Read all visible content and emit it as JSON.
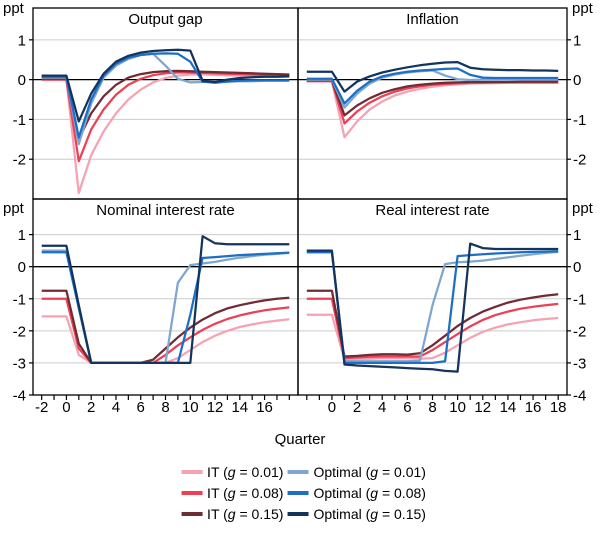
{
  "figure": {
    "unit_label": "ppt",
    "xlabel": "Quarter"
  },
  "colors": {
    "it_001": "#F5A3B2",
    "it_008": "#EC4057",
    "it_015": "#6E2C33",
    "opt_001": "#7FA6CD",
    "opt_008": "#1C6FC4",
    "opt_015": "#14335D",
    "grid": "#CCCCCC",
    "axis": "#000000"
  },
  "legend": [
    {
      "pre": "IT (",
      "g": "g",
      "post": " = 0.01)",
      "color_key": "it_001"
    },
    {
      "pre": "Optimal (",
      "g": "g",
      "post": " = 0.01)",
      "color_key": "opt_001"
    },
    {
      "pre": "IT (",
      "g": "g",
      "post": " = 0.08)",
      "color_key": "it_008"
    },
    {
      "pre": "Optimal (",
      "g": "g",
      "post": " = 0.08)",
      "color_key": "opt_008"
    },
    {
      "pre": "IT (",
      "g": "g",
      "post": " = 0.15)",
      "color_key": "it_015"
    },
    {
      "pre": "Optimal (",
      "g": "g",
      "post": " = 0.15)",
      "color_key": "opt_015"
    }
  ],
  "chart_data": [
    {
      "type": "line",
      "title": "Output gap",
      "position": "top-left",
      "ytick_side": "left",
      "xlim": [
        -2.7,
        18.7
      ],
      "ylim": [
        -3.0,
        1.8
      ],
      "yticks": [
        1,
        0,
        -1,
        -2
      ],
      "xtick_labels": [],
      "x": [
        -2,
        -1,
        0,
        1,
        2,
        3,
        4,
        5,
        6,
        7,
        8,
        9,
        10,
        11,
        12,
        13,
        14,
        15,
        16,
        17,
        18
      ],
      "series": [
        {
          "name": "IT (g = 0.01)",
          "color_key": "it_001",
          "values": [
            0.0,
            0.0,
            0.0,
            -2.85,
            -1.9,
            -1.3,
            -0.85,
            -0.5,
            -0.25,
            -0.07,
            0.04,
            0.1,
            0.13,
            0.13,
            0.12,
            0.11,
            0.1,
            0.1,
            0.09,
            0.09,
            0.08
          ]
        },
        {
          "name": "IT (g = 0.08)",
          "color_key": "it_008",
          "values": [
            0.0,
            0.0,
            0.0,
            -2.05,
            -1.25,
            -0.75,
            -0.38,
            -0.13,
            0.02,
            0.11,
            0.16,
            0.18,
            0.18,
            0.17,
            0.16,
            0.15,
            0.14,
            0.13,
            0.12,
            0.11,
            0.1
          ]
        },
        {
          "name": "IT (g = 0.15)",
          "color_key": "it_015",
          "values": [
            0.02,
            0.02,
            0.02,
            -1.5,
            -0.85,
            -0.42,
            -0.13,
            0.05,
            0.14,
            0.19,
            0.21,
            0.22,
            0.21,
            0.2,
            0.19,
            0.18,
            0.17,
            0.16,
            0.15,
            0.14,
            0.13
          ]
        },
        {
          "name": "Optimal (g = 0.01)",
          "color_key": "opt_001",
          "values": [
            0.05,
            0.05,
            0.05,
            -1.62,
            -0.6,
            0.05,
            0.35,
            0.52,
            0.62,
            0.65,
            0.35,
            0.02,
            -0.07,
            -0.06,
            -0.05,
            -0.05,
            -0.04,
            -0.04,
            -0.03,
            -0.03,
            -0.03
          ]
        },
        {
          "name": "Optimal (g = 0.08)",
          "color_key": "opt_008",
          "values": [
            0.07,
            0.07,
            0.07,
            -1.45,
            -0.5,
            0.1,
            0.4,
            0.55,
            0.62,
            0.65,
            0.66,
            0.65,
            0.45,
            -0.05,
            -0.08,
            -0.05,
            -0.03,
            -0.02,
            -0.02,
            -0.02,
            -0.02
          ]
        },
        {
          "name": "Optimal (g = 0.15)",
          "color_key": "opt_015",
          "values": [
            0.1,
            0.1,
            0.1,
            -1.05,
            -0.35,
            0.15,
            0.45,
            0.6,
            0.68,
            0.72,
            0.74,
            0.75,
            0.73,
            -0.03,
            -0.06,
            0.0,
            0.04,
            0.06,
            0.07,
            0.07,
            0.08
          ]
        }
      ]
    },
    {
      "type": "line",
      "title": "Inflation",
      "position": "top-right",
      "ytick_side": "right",
      "xlim": [
        -2.7,
        18.7
      ],
      "ylim": [
        -3.0,
        1.8
      ],
      "yticks": [
        1,
        0,
        -1,
        -2
      ],
      "xtick_labels": [],
      "x": [
        -2,
        -1,
        0,
        1,
        2,
        3,
        4,
        5,
        6,
        7,
        8,
        9,
        10,
        11,
        12,
        13,
        14,
        15,
        16,
        17,
        18
      ],
      "series": [
        {
          "name": "IT (g = 0.01)",
          "color_key": "it_001",
          "values": [
            -0.05,
            -0.05,
            -0.05,
            -1.45,
            -1.05,
            -0.75,
            -0.55,
            -0.4,
            -0.3,
            -0.23,
            -0.18,
            -0.14,
            -0.12,
            -0.1,
            -0.09,
            -0.09,
            -0.08,
            -0.08,
            -0.08,
            -0.08,
            -0.08
          ]
        },
        {
          "name": "IT (g = 0.08)",
          "color_key": "it_008",
          "values": [
            -0.03,
            -0.03,
            -0.03,
            -1.1,
            -0.8,
            -0.58,
            -0.42,
            -0.3,
            -0.22,
            -0.17,
            -0.13,
            -0.11,
            -0.09,
            -0.08,
            -0.08,
            -0.07,
            -0.07,
            -0.07,
            -0.07,
            -0.07,
            -0.07
          ]
        },
        {
          "name": "IT (g = 0.15)",
          "color_key": "it_015",
          "values": [
            -0.02,
            -0.02,
            -0.02,
            -0.9,
            -0.65,
            -0.47,
            -0.33,
            -0.24,
            -0.17,
            -0.13,
            -0.1,
            -0.08,
            -0.07,
            -0.06,
            -0.06,
            -0.06,
            -0.06,
            -0.05,
            -0.05,
            -0.05,
            -0.05
          ]
        },
        {
          "name": "Optimal (g = 0.01)",
          "color_key": "opt_001",
          "values": [
            0.0,
            0.0,
            0.0,
            -0.7,
            -0.35,
            -0.1,
            0.05,
            0.13,
            0.18,
            0.21,
            0.23,
            0.1,
            0.01,
            -0.01,
            0.0,
            0.0,
            0.0,
            0.0,
            0.0,
            0.0,
            0.0
          ]
        },
        {
          "name": "Optimal (g = 0.08)",
          "color_key": "opt_008",
          "values": [
            0.02,
            0.02,
            0.02,
            -0.6,
            -0.28,
            -0.05,
            0.08,
            0.15,
            0.2,
            0.23,
            0.25,
            0.27,
            0.28,
            0.12,
            0.05,
            0.04,
            0.04,
            0.04,
            0.04,
            0.04,
            0.04
          ]
        },
        {
          "name": "Optimal (g = 0.15)",
          "color_key": "opt_015",
          "values": [
            0.2,
            0.2,
            0.2,
            -0.3,
            -0.05,
            0.08,
            0.18,
            0.25,
            0.31,
            0.36,
            0.4,
            0.43,
            0.44,
            0.3,
            0.26,
            0.25,
            0.24,
            0.24,
            0.23,
            0.23,
            0.22
          ]
        }
      ]
    },
    {
      "type": "line",
      "title": "Nominal interest rate",
      "position": "bottom-left",
      "ytick_side": "left",
      "xlim": [
        -2.7,
        18.7
      ],
      "ylim": [
        -4.0,
        2.11
      ],
      "yticks": [
        1,
        0,
        -1,
        -2,
        -3,
        -4
      ],
      "xtick_labels": [
        -2,
        0,
        2,
        4,
        6,
        8,
        10,
        12,
        14,
        16
      ],
      "x": [
        -2,
        -1,
        0,
        1,
        2,
        3,
        4,
        5,
        6,
        7,
        8,
        9,
        10,
        11,
        12,
        13,
        14,
        15,
        16,
        17,
        18
      ],
      "series": [
        {
          "name": "IT (g = 0.01)",
          "color_key": "it_001",
          "values": [
            -1.55,
            -1.55,
            -1.55,
            -2.75,
            -3.0,
            -3.0,
            -3.0,
            -3.0,
            -3.0,
            -3.0,
            -3.0,
            -2.85,
            -2.6,
            -2.35,
            -2.15,
            -2.0,
            -1.88,
            -1.8,
            -1.73,
            -1.68,
            -1.64
          ]
        },
        {
          "name": "IT (g = 0.08)",
          "color_key": "it_008",
          "values": [
            -1.0,
            -1.0,
            -1.0,
            -2.55,
            -3.0,
            -3.0,
            -3.0,
            -3.0,
            -3.0,
            -3.0,
            -2.75,
            -2.45,
            -2.2,
            -1.97,
            -1.78,
            -1.63,
            -1.52,
            -1.43,
            -1.36,
            -1.31,
            -1.27
          ]
        },
        {
          "name": "IT (g = 0.15)",
          "color_key": "it_015",
          "values": [
            -0.75,
            -0.75,
            -0.75,
            -2.4,
            -3.0,
            -3.0,
            -3.0,
            -3.0,
            -3.0,
            -2.9,
            -2.55,
            -2.2,
            -1.9,
            -1.65,
            -1.45,
            -1.3,
            -1.2,
            -1.12,
            -1.05,
            -1.0,
            -0.97
          ]
        },
        {
          "name": "Optimal (g = 0.01)",
          "color_key": "opt_001",
          "values": [
            0.5,
            0.5,
            0.5,
            -1.25,
            -3.0,
            -3.0,
            -3.0,
            -3.0,
            -3.0,
            -3.0,
            -3.0,
            -0.5,
            0.05,
            0.1,
            0.15,
            0.22,
            0.28,
            0.33,
            0.37,
            0.4,
            0.43
          ]
        },
        {
          "name": "Optimal (g = 0.08)",
          "color_key": "opt_008",
          "values": [
            0.45,
            0.45,
            0.45,
            -1.3,
            -3.0,
            -3.0,
            -3.0,
            -3.0,
            -3.0,
            -3.0,
            -3.0,
            -3.0,
            -1.5,
            0.27,
            0.3,
            0.33,
            0.36,
            0.38,
            0.4,
            0.42,
            0.44
          ]
        },
        {
          "name": "Optimal (g = 0.15)",
          "color_key": "opt_015",
          "values": [
            0.65,
            0.65,
            0.65,
            -1.2,
            -3.0,
            -3.0,
            -3.0,
            -3.0,
            -3.0,
            -3.0,
            -3.0,
            -3.0,
            -3.0,
            0.95,
            0.73,
            0.7,
            0.7,
            0.7,
            0.7,
            0.7,
            0.7
          ]
        }
      ]
    },
    {
      "type": "line",
      "title": "Real interest rate",
      "position": "bottom-right",
      "ytick_side": "right",
      "xlim": [
        -2.7,
        18.7
      ],
      "ylim": [
        -4.0,
        2.11
      ],
      "yticks": [
        1,
        0,
        -1,
        -2,
        -3,
        -4
      ],
      "xtick_labels": [
        0,
        2,
        4,
        6,
        8,
        10,
        12,
        14,
        16,
        18
      ],
      "x": [
        -2,
        -1,
        0,
        1,
        2,
        3,
        4,
        5,
        6,
        7,
        8,
        9,
        10,
        11,
        12,
        13,
        14,
        15,
        16,
        17,
        18
      ],
      "series": [
        {
          "name": "IT (g = 0.01)",
          "color_key": "it_001",
          "values": [
            -1.5,
            -1.5,
            -1.5,
            -2.9,
            -2.88,
            -2.87,
            -2.86,
            -2.86,
            -2.86,
            -2.87,
            -2.85,
            -2.68,
            -2.45,
            -2.22,
            -2.03,
            -1.9,
            -1.8,
            -1.73,
            -1.67,
            -1.63,
            -1.6
          ]
        },
        {
          "name": "IT (g = 0.08)",
          "color_key": "it_008",
          "values": [
            -1.0,
            -1.0,
            -1.0,
            -2.85,
            -2.83,
            -2.81,
            -2.8,
            -2.8,
            -2.8,
            -2.8,
            -2.6,
            -2.35,
            -2.1,
            -1.86,
            -1.66,
            -1.51,
            -1.4,
            -1.31,
            -1.25,
            -1.2,
            -1.16
          ]
        },
        {
          "name": "IT (g = 0.15)",
          "color_key": "it_015",
          "values": [
            -0.75,
            -0.75,
            -0.75,
            -2.8,
            -2.78,
            -2.75,
            -2.73,
            -2.73,
            -2.74,
            -2.7,
            -2.45,
            -2.15,
            -1.85,
            -1.6,
            -1.4,
            -1.25,
            -1.12,
            -1.03,
            -0.96,
            -0.9,
            -0.86
          ]
        },
        {
          "name": "Optimal (g = 0.01)",
          "color_key": "opt_001",
          "values": [
            0.45,
            0.45,
            0.45,
            -2.95,
            -2.95,
            -2.95,
            -2.95,
            -2.95,
            -2.95,
            -2.93,
            -1.2,
            0.08,
            0.14,
            0.16,
            0.19,
            0.24,
            0.29,
            0.34,
            0.39,
            0.43,
            0.46
          ]
        },
        {
          "name": "Optimal (g = 0.08)",
          "color_key": "opt_008",
          "values": [
            0.45,
            0.45,
            0.45,
            -3.0,
            -3.0,
            -3.0,
            -3.0,
            -3.0,
            -3.0,
            -3.0,
            -3.0,
            -2.95,
            0.33,
            0.36,
            0.39,
            0.41,
            0.43,
            0.45,
            0.46,
            0.47,
            0.48
          ]
        },
        {
          "name": "Optimal (g = 0.15)",
          "color_key": "opt_015",
          "values": [
            0.5,
            0.5,
            0.5,
            -3.05,
            -3.08,
            -3.1,
            -3.12,
            -3.14,
            -3.16,
            -3.18,
            -3.2,
            -3.25,
            -3.27,
            0.72,
            0.58,
            0.55,
            0.55,
            0.55,
            0.55,
            0.55,
            0.55
          ]
        }
      ]
    }
  ]
}
